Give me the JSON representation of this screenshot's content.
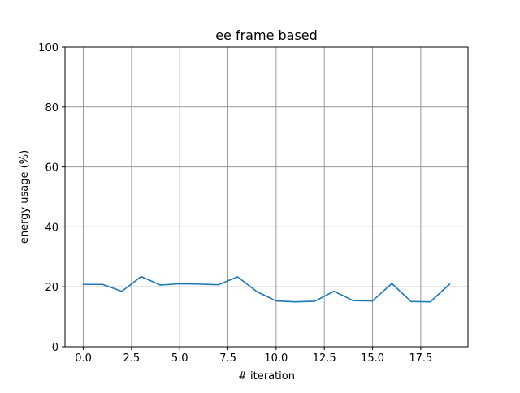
{
  "chart_data": {
    "type": "line",
    "title": "ee frame based",
    "xlabel": "# iteration",
    "ylabel": "energy usage (%)",
    "xlim": [
      -0.95,
      19.95
    ],
    "ylim": [
      0,
      100
    ],
    "xticks": [
      0.0,
      2.5,
      5.0,
      7.5,
      10.0,
      12.5,
      15.0,
      17.5
    ],
    "xtick_labels": [
      "0.0",
      "2.5",
      "5.0",
      "7.5",
      "10.0",
      "12.5",
      "15.0",
      "17.5"
    ],
    "yticks": [
      0,
      20,
      40,
      60,
      80,
      100
    ],
    "ytick_labels": [
      "0",
      "20",
      "40",
      "60",
      "80",
      "100"
    ],
    "grid": true,
    "colors": {
      "line": "#1f77b4",
      "grid": "#999999",
      "axes": "#000000"
    },
    "series": [
      {
        "x": [
          0,
          1,
          2,
          3,
          4,
          5,
          6,
          7,
          8,
          9,
          10,
          11,
          12,
          13,
          14,
          15,
          16,
          17,
          18,
          19
        ],
        "values": [
          20.8,
          20.8,
          18.5,
          23.4,
          20.6,
          21.0,
          20.9,
          20.7,
          23.3,
          18.4,
          15.3,
          15.0,
          15.2,
          18.5,
          15.4,
          15.3,
          21.1,
          15.1,
          15.0,
          20.9
        ]
      }
    ]
  }
}
